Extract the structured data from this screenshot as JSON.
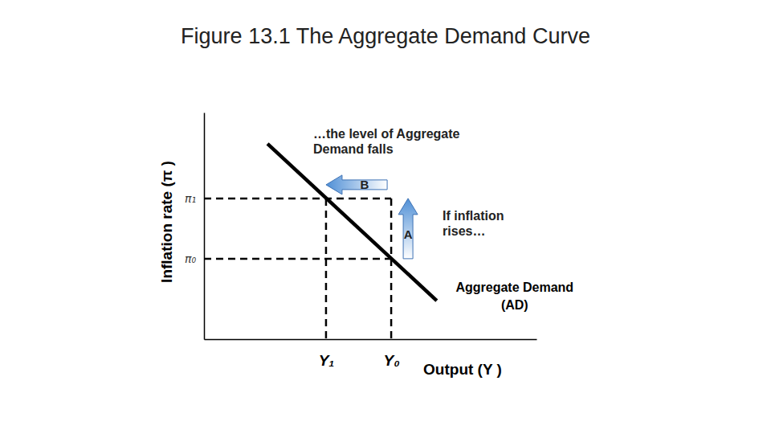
{
  "chart_data": {
    "type": "line",
    "title": "Figure 13.1 The Aggregate Demand Curve",
    "x_label": "Output (Y )",
    "y_label": "Inflation rate (π )",
    "x": [
      19.1,
      70.0
    ],
    "series": [
      {
        "name": "Aggregate Demand (AD)",
        "color": "#000000",
        "values": [
          86.2,
          17.0
        ]
      }
    ],
    "xlim": [
      0,
      100
    ],
    "ylim": [
      0,
      100
    ],
    "xticks": [
      {
        "value": 36.7,
        "label": "Y₁"
      },
      {
        "value": 56.3,
        "label": "Y₀"
      }
    ],
    "yticks": [
      {
        "value": 35.5,
        "label": "π₀"
      },
      {
        "value": 62.1,
        "label": "π₁"
      }
    ],
    "annotations": [
      [
        "…the level of Aggregate",
        "Demand falls"
      ],
      [
        "B"
      ],
      [
        "If inflation",
        "rises…"
      ],
      [
        "A"
      ]
    ]
  }
}
